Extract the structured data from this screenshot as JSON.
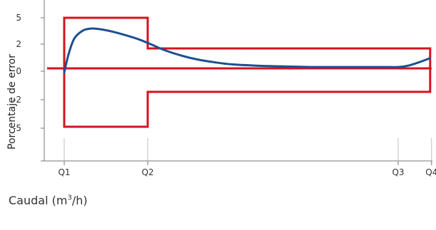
{
  "chart_data": {
    "type": "line",
    "xlabel": "Caudal",
    "xlabel_unit_base": "(m",
    "xlabel_unit_exp": "3",
    "xlabel_unit_end": "/h)",
    "ylabel": "Porcentaje de error",
    "y_ticks": [
      "5",
      "2",
      "0",
      "-2",
      "-5"
    ],
    "x_ticks": [
      "Q1",
      "Q2",
      "Q3",
      "Q4"
    ],
    "x_tick_positions": [
      0.0,
      1.0,
      4.0,
      4.4
    ],
    "xlim": [
      -0.2,
      4.4
    ],
    "ylim": [
      -6.5,
      5.7
    ],
    "grid": false,
    "envelope": {
      "color": "#d7121f",
      "upper_low_flow": 5,
      "lower_low_flow": -5,
      "upper_high_flow": 2,
      "lower_high_flow": -2,
      "transition_x": 1.0
    },
    "zero_line": {
      "color": "#d7121f",
      "y": 0
    },
    "series": [
      {
        "color": "#1d4f91",
        "x": [
          0.0,
          0.05,
          0.12,
          0.22,
          0.32,
          0.45,
          0.6,
          0.75,
          0.9,
          1.05,
          1.2,
          1.4,
          1.6,
          1.8,
          2.0,
          2.3,
          2.6,
          3.0,
          3.4,
          3.8,
          4.0,
          4.12,
          4.25,
          4.38
        ],
        "y": [
          -0.3,
          1.0,
          2.3,
          3.2,
          3.45,
          3.35,
          3.05,
          2.65,
          2.2,
          1.75,
          1.35,
          0.95,
          0.65,
          0.45,
          0.3,
          0.2,
          0.15,
          0.1,
          0.1,
          0.1,
          0.1,
          0.2,
          0.45,
          0.75
        ]
      }
    ]
  }
}
